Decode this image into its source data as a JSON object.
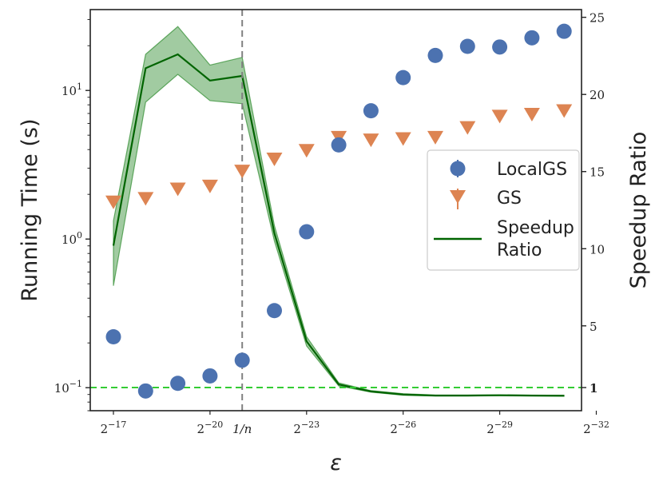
{
  "chart_data": {
    "type": "scatter",
    "xlabel": "ε",
    "ylabel_left": "Running Time (s)",
    "ylabel_right": "Speedup Ratio",
    "x_exponents": [
      17,
      18,
      19,
      20,
      21,
      22,
      23,
      24,
      25,
      26,
      27,
      28,
      29,
      30,
      31
    ],
    "x_tick_labels": [
      {
        "base": "2",
        "exp": "−17",
        "at": 17
      },
      {
        "base": "2",
        "exp": "−20",
        "at": 20
      },
      {
        "base": "2",
        "exp": "−23",
        "at": 23
      },
      {
        "base": "2",
        "exp": "−26",
        "at": 26
      },
      {
        "base": "2",
        "exp": "−29",
        "at": 29
      },
      {
        "base": "2",
        "exp": "−32",
        "at": 32
      }
    ],
    "vline": {
      "label": "1/n",
      "at": 21
    },
    "left_axis": {
      "scale": "log",
      "ylim": [
        0.07,
        35
      ],
      "ticks": [
        {
          "value": 0.1,
          "base": "10",
          "exp": "−1"
        },
        {
          "value": 1,
          "base": "10",
          "exp": "0"
        },
        {
          "value": 10,
          "base": "10",
          "exp": "1"
        }
      ]
    },
    "right_axis": {
      "scale": "linear",
      "ylim": [
        -0.5,
        25.5
      ],
      "ticks": [
        {
          "value": 1,
          "label": "1",
          "bold": true
        },
        {
          "value": 5,
          "label": "5"
        },
        {
          "value": 10,
          "label": "10"
        },
        {
          "value": 15,
          "label": "15"
        },
        {
          "value": 20,
          "label": "20"
        },
        {
          "value": 25,
          "label": "25"
        }
      ],
      "hline": 1
    },
    "series": [
      {
        "name": "LocalGS",
        "axis": "left",
        "marker": "circle",
        "color": "#4C72B0",
        "values": [
          0.22,
          0.095,
          0.107,
          0.12,
          0.153,
          0.33,
          1.12,
          4.3,
          7.3,
          12.2,
          17.2,
          19.8,
          19.6,
          22.6,
          25.0
        ]
      },
      {
        "name": "GS",
        "axis": "left",
        "marker": "triangle-down",
        "color": "#DD8452",
        "values": [
          1.8,
          1.9,
          2.2,
          2.3,
          2.9,
          3.5,
          4.0,
          4.9,
          4.7,
          4.8,
          4.9,
          5.7,
          6.8,
          7.0,
          7.4
        ]
      },
      {
        "name": "Speedup Ratio",
        "axis": "right",
        "type": "line",
        "color": "#006400",
        "band_color": "#2E8B2E",
        "values": [
          10.2,
          21.7,
          22.6,
          20.9,
          21.2,
          11.0,
          4.0,
          1.2,
          0.75,
          0.55,
          0.48,
          0.48,
          0.5,
          0.48,
          0.47
        ],
        "band_low": [
          7.6,
          19.5,
          21.3,
          19.6,
          19.4,
          10.5,
          3.7,
          1.1,
          0.7,
          0.5,
          0.45,
          0.45,
          0.47,
          0.45,
          0.44
        ],
        "band_high": [
          11.8,
          22.6,
          24.4,
          21.9,
          22.4,
          11.5,
          4.3,
          1.3,
          0.8,
          0.6,
          0.52,
          0.52,
          0.53,
          0.51,
          0.5
        ]
      }
    ],
    "legend": {
      "placement": "center-right",
      "entries": [
        "LocalGS",
        "GS",
        "Speedup",
        "Ratio"
      ]
    }
  }
}
